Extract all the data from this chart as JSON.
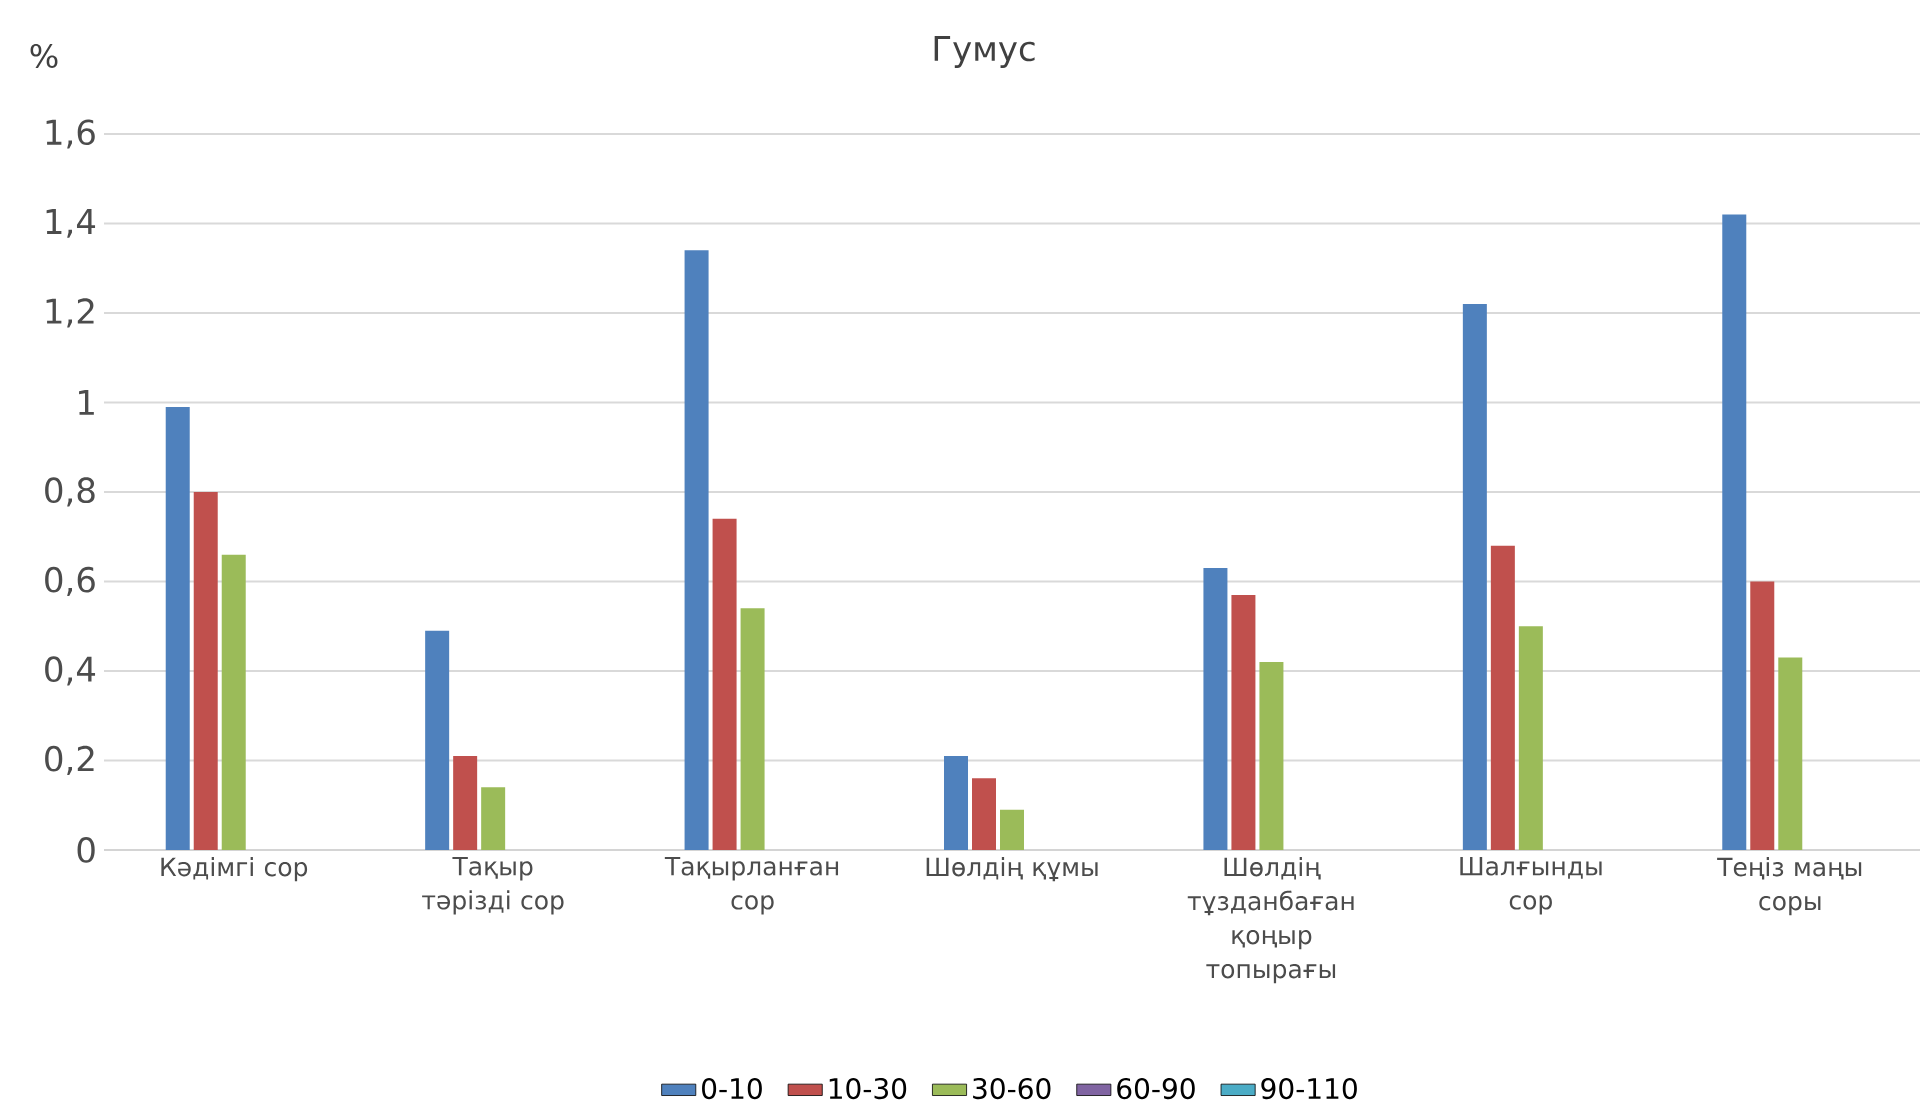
{
  "chart_data": {
    "type": "bar",
    "title": "Гумус",
    "ylabel": "%",
    "categories": [
      "Кәдімгі сор",
      "Тақыр тәрізді сор",
      "Тақырланған сор",
      "Шөлдің құмы",
      "Шөлдің тұзданбаған қоңыр топырағы",
      "Шалғынды сор",
      "Теңіз маңы соры"
    ],
    "series": [
      {
        "name": "0-10",
        "color": "#4f81bd",
        "values": [
          0.99,
          0.49,
          1.34,
          0.21,
          0.63,
          1.22,
          1.42
        ]
      },
      {
        "name": "10-30",
        "color": "#c0504d",
        "values": [
          0.8,
          0.21,
          0.74,
          0.16,
          0.57,
          0.68,
          0.6
        ]
      },
      {
        "name": "30-60",
        "color": "#9bbb59",
        "values": [
          0.66,
          0.14,
          0.54,
          0.09,
          0.42,
          0.5,
          0.43
        ]
      },
      {
        "name": "60-90",
        "color": "#8064a2",
        "values": [
          null,
          null,
          null,
          null,
          null,
          null,
          null
        ]
      },
      {
        "name": "90-110",
        "color": "#4bacc6",
        "values": [
          null,
          null,
          null,
          null,
          null,
          null,
          null
        ]
      }
    ],
    "ylim": [
      0,
      1.6
    ],
    "yticks": [
      {
        "value": 0,
        "label": "0"
      },
      {
        "value": 0.2,
        "label": "0,2"
      },
      {
        "value": 0.4,
        "label": "0,4"
      },
      {
        "value": 0.6,
        "label": "0,6"
      },
      {
        "value": 0.8,
        "label": "0,8"
      },
      {
        "value": 1,
        "label": "1"
      },
      {
        "value": 1.2,
        "label": "1,2"
      },
      {
        "value": 1.4,
        "label": "1,4"
      },
      {
        "value": 1.6,
        "label": "1,6"
      }
    ],
    "grid": "y",
    "legend": "bottom"
  }
}
